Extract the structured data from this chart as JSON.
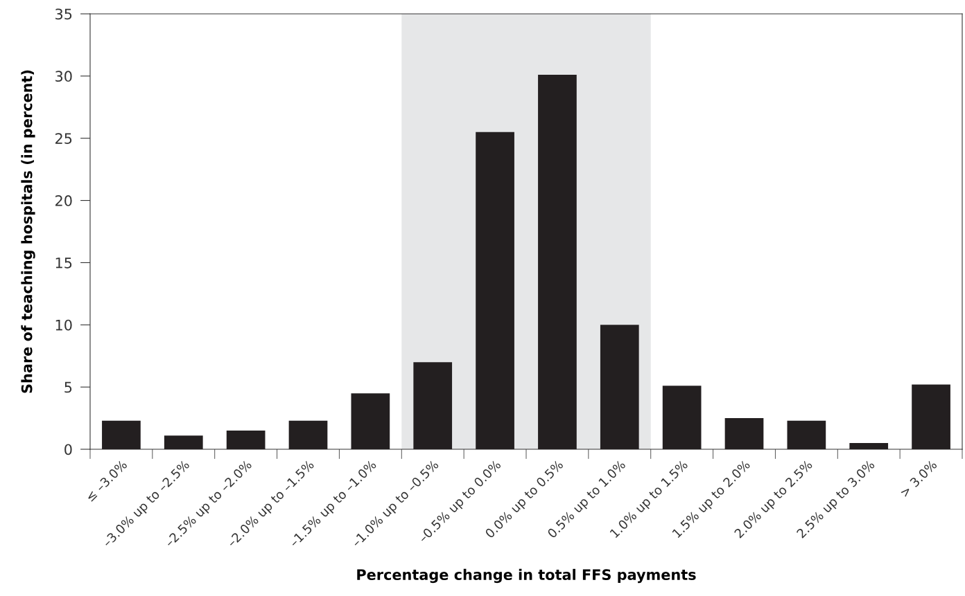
{
  "chart_data": {
    "type": "bar",
    "xlabel": "Percentage change in total FFS payments",
    "ylabel": "Share of teaching hospitals (in percent)",
    "categories": [
      "≤ –3.0%",
      "–3.0% up to –2.5%",
      "–2.5% up to –2.0%",
      "–2.0% up to –1.5%",
      "–1.5% up to –1.0%",
      "–1.0% up to –0.5%",
      "–0.5% up to 0.0%",
      "0.0% up to 0.5%",
      "0.5% up to 1.0%",
      "1.0% up to 1.5%",
      "1.5% up to 2.0%",
      "2.0% up to 2.5%",
      "2.5% up to 3.0%",
      "> 3.0%"
    ],
    "values": [
      2.3,
      1.1,
      1.5,
      2.3,
      4.5,
      7.0,
      25.5,
      30.1,
      10.0,
      5.1,
      2.5,
      2.3,
      0.5,
      5.2
    ],
    "color": "#231f20",
    "ylim": [
      0,
      35
    ],
    "yticks": [
      0,
      5,
      10,
      15,
      20,
      25,
      30,
      35
    ],
    "bands": [
      {
        "axis": "x",
        "from": "–1.0% up to –0.5%",
        "to": "0.5% up to 1.0%",
        "label": null,
        "color": "#e6e7e8"
      }
    ],
    "grid": false,
    "legend": false
  }
}
